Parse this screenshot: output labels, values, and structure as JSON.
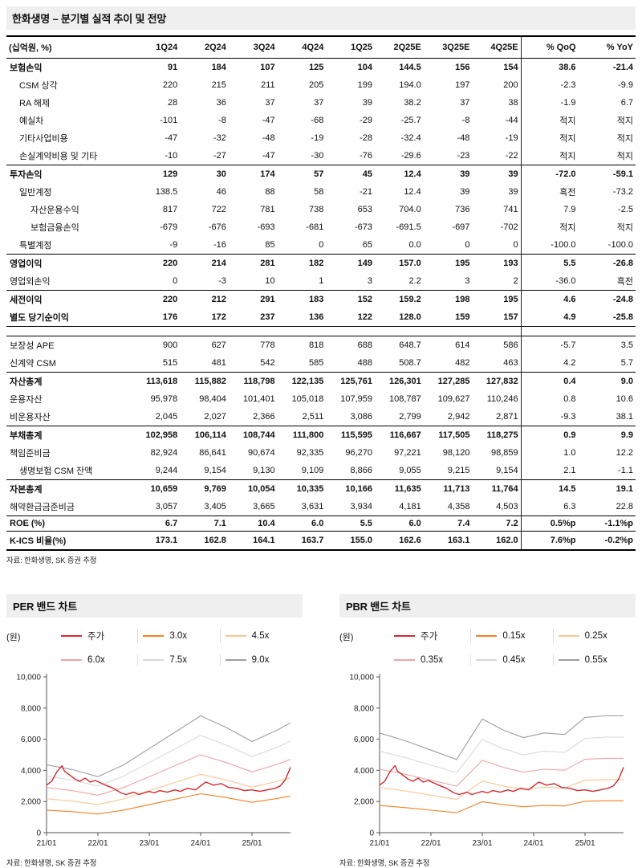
{
  "colors": {
    "price_red": "#d7282f",
    "band_orange": "#f57f20",
    "band_light_orange": "#fbc690",
    "band_pink": "#f0a3a8",
    "band_light_gray": "#d9d9d9",
    "band_gray": "#9e9e9e",
    "header_bg": "#efefef"
  },
  "report": {
    "title": "한화생명 – 분기별 실적 추이 및 전망",
    "table": {
      "unit_header": "(십억원, %)",
      "columns": [
        "1Q24",
        "2Q24",
        "3Q24",
        "4Q24",
        "1Q25",
        "2Q25E",
        "3Q25E",
        "4Q25E",
        "% QoQ",
        "% YoY"
      ],
      "rows": [
        {
          "label": "보험손익",
          "bold": true,
          "values": [
            "91",
            "184",
            "107",
            "125",
            "104",
            "144.5",
            "156",
            "154",
            "38.6",
            "-21.4"
          ]
        },
        {
          "label": "CSM 상각",
          "indent": 1,
          "values": [
            "220",
            "215",
            "211",
            "205",
            "199",
            "194.0",
            "197",
            "200",
            "-2.3",
            "-9.9"
          ]
        },
        {
          "label": "RA 해제",
          "indent": 1,
          "values": [
            "28",
            "36",
            "37",
            "37",
            "39",
            "38.2",
            "37",
            "38",
            "-1.9",
            "6.7"
          ]
        },
        {
          "label": "예실차",
          "indent": 1,
          "values": [
            "-101",
            "-8",
            "-47",
            "-68",
            "-29",
            "-25.7",
            "-8",
            "-44",
            "적지",
            "적지"
          ]
        },
        {
          "label": "기타사업비용",
          "indent": 1,
          "values": [
            "-47",
            "-32",
            "-48",
            "-19",
            "-28",
            "-32.4",
            "-48",
            "-19",
            "적지",
            "적지"
          ]
        },
        {
          "label": "손실계약비용 및 기타",
          "indent": 1,
          "values": [
            "-10",
            "-27",
            "-47",
            "-30",
            "-76",
            "-29.6",
            "-23",
            "-22",
            "적지",
            "적지"
          ]
        },
        {
          "label": "투자손익",
          "bold": true,
          "rule": true,
          "values": [
            "129",
            "30",
            "174",
            "57",
            "45",
            "12.4",
            "39",
            "39",
            "-72.0",
            "-59.1"
          ]
        },
        {
          "label": "일반계정",
          "indent": 1,
          "values": [
            "138.5",
            "46",
            "88",
            "58",
            "-21",
            "12.4",
            "39",
            "39",
            "흑전",
            "-73.2"
          ]
        },
        {
          "label": "자산운용수익",
          "indent": 2,
          "values": [
            "817",
            "722",
            "781",
            "738",
            "653",
            "704.0",
            "736",
            "741",
            "7.9",
            "-2.5"
          ]
        },
        {
          "label": "보험금융손익",
          "indent": 2,
          "values": [
            "-679",
            "-676",
            "-693",
            "-681",
            "-673",
            "-691.5",
            "-697",
            "-702",
            "적지",
            "적지"
          ]
        },
        {
          "label": "특별계정",
          "indent": 1,
          "values": [
            "-9",
            "-16",
            "85",
            "0",
            "65",
            "0.0",
            "0",
            "0",
            "-100.0",
            "-100.0"
          ]
        },
        {
          "label": "영업이익",
          "bold": true,
          "rule": true,
          "values": [
            "220",
            "214",
            "281",
            "182",
            "149",
            "157.0",
            "195",
            "193",
            "5.5",
            "-26.8"
          ]
        },
        {
          "label": "영업외손익",
          "values": [
            "0",
            "-3",
            "10",
            "1",
            "3",
            "2.2",
            "3",
            "2",
            "-36.0",
            "흑전"
          ]
        },
        {
          "label": "세전이익",
          "bold": true,
          "rule": true,
          "values": [
            "220",
            "212",
            "291",
            "183",
            "152",
            "159.2",
            "198",
            "195",
            "4.6",
            "-24.8"
          ]
        },
        {
          "label": "별도 당기순이익",
          "bold": true,
          "values": [
            "176",
            "172",
            "237",
            "136",
            "122",
            "128.0",
            "159",
            "157",
            "4.9",
            "-25.8"
          ]
        },
        {
          "section_break": true
        },
        {
          "label": "보장성 APE",
          "rule": true,
          "values": [
            "900",
            "627",
            "778",
            "818",
            "688",
            "648.7",
            "614",
            "586",
            "-5.7",
            "3.5"
          ]
        },
        {
          "label": "신계약 CSM",
          "values": [
            "515",
            "481",
            "542",
            "585",
            "488",
            "508.7",
            "482",
            "463",
            "4.2",
            "5.7"
          ]
        },
        {
          "label": "자산총계",
          "bold": true,
          "rule": true,
          "values": [
            "113,618",
            "115,882",
            "118,798",
            "122,135",
            "125,761",
            "126,301",
            "127,285",
            "127,832",
            "0.4",
            "9.0"
          ]
        },
        {
          "label": "운용자산",
          "values": [
            "95,978",
            "98,404",
            "101,401",
            "105,018",
            "107,959",
            "108,787",
            "109,627",
            "110,246",
            "0.8",
            "10.6"
          ]
        },
        {
          "label": "비운용자산",
          "values": [
            "2,045",
            "2,027",
            "2,366",
            "2,511",
            "3,086",
            "2,799",
            "2,942",
            "2,871",
            "-9.3",
            "38.1"
          ]
        },
        {
          "label": "부채총계",
          "bold": true,
          "rule": true,
          "values": [
            "102,958",
            "106,114",
            "108,744",
            "111,800",
            "115,595",
            "116,667",
            "117,505",
            "118,275",
            "0.9",
            "9.9"
          ]
        },
        {
          "label": "책임준비금",
          "values": [
            "82,924",
            "86,641",
            "90,674",
            "92,335",
            "96,270",
            "97,221",
            "98,120",
            "98,859",
            "1.0",
            "12.2"
          ]
        },
        {
          "label": "생명보험 CSM 잔액",
          "indent": 1,
          "values": [
            "9,244",
            "9,154",
            "9,130",
            "9,109",
            "8,866",
            "9,055",
            "9,215",
            "9,154",
            "2.1",
            "-1.1"
          ]
        },
        {
          "label": "자본총계",
          "bold": true,
          "rule": true,
          "values": [
            "10,659",
            "9,769",
            "10,054",
            "10,335",
            "10,166",
            "11,635",
            "11,713",
            "11,764",
            "14.5",
            "19.1"
          ]
        },
        {
          "label": "해약환급금준비금",
          "values": [
            "3,057",
            "3,405",
            "3,665",
            "3,631",
            "3,934",
            "4,181",
            "4,358",
            "4,503",
            "6.3",
            "22.8"
          ]
        },
        {
          "label": "ROE (%)",
          "bold": true,
          "rule": true,
          "values": [
            "6.7",
            "7.1",
            "10.4",
            "6.0",
            "5.5",
            "6.0",
            "7.4",
            "7.2",
            "0.5%p",
            "-1.1%p"
          ]
        },
        {
          "label": "K-ICS 비율(%)",
          "bold": true,
          "rule": true,
          "values": [
            "173.1",
            "162.8",
            "164.1",
            "163.7",
            "155.0",
            "162.6",
            "163.1",
            "162.0",
            "7.6%p",
            "-0.2%p"
          ]
        }
      ],
      "source": "자료: 한화생명, SK 증권 추정"
    }
  },
  "chart_data": [
    {
      "type": "line",
      "title": "PER 밴드 차트",
      "ylabel": "(원)",
      "ylim": [
        0,
        10000
      ],
      "yticks": [
        0,
        2000,
        4000,
        6000,
        8000,
        10000
      ],
      "ytick_labels": [
        "0",
        "2,000",
        "4,000",
        "6,000",
        "8,000",
        "10,000"
      ],
      "xlim": [
        0,
        4.75
      ],
      "xtick_pos": [
        0,
        1,
        2,
        3,
        4
      ],
      "xtick_labels": [
        "21/01",
        "22/01",
        "23/01",
        "24/01",
        "25/01"
      ],
      "grid": false,
      "legend_position": "top",
      "source": "자료: 한화생명, SK 증권 추정",
      "series": [
        {
          "name": "주가",
          "color": "#d7282f",
          "width": 1.4,
          "x": [
            0,
            0.1,
            0.2,
            0.3,
            0.35,
            0.45,
            0.55,
            0.65,
            0.75,
            0.85,
            0.95,
            1.05,
            1.15,
            1.3,
            1.45,
            1.55,
            1.7,
            1.8,
            1.9,
            2.0,
            2.1,
            2.2,
            2.35,
            2.5,
            2.6,
            2.75,
            2.9,
            3.0,
            3.1,
            3.25,
            3.4,
            3.55,
            3.7,
            3.85,
            4.0,
            4.15,
            4.3,
            4.45,
            4.55,
            4.65,
            4.7,
            4.75
          ],
          "values": [
            3050,
            3300,
            3900,
            4300,
            3950,
            3700,
            3450,
            3300,
            3500,
            3250,
            3350,
            3200,
            3050,
            2850,
            2550,
            2450,
            2600,
            2450,
            2550,
            2650,
            2550,
            2700,
            2600,
            2750,
            2650,
            2850,
            2750,
            3000,
            3250,
            3050,
            3150,
            2900,
            2850,
            2700,
            2750,
            2650,
            2750,
            2850,
            3000,
            3400,
            3800,
            4200
          ]
        },
        {
          "name": "3.0x",
          "color": "#f57f20",
          "width": 1.1,
          "x": [
            0,
            0.5,
            1,
            1.5,
            2,
            2.5,
            3,
            3.5,
            4,
            4.5,
            4.75
          ],
          "values": [
            1450,
            1350,
            1200,
            1450,
            1800,
            2150,
            2500,
            2250,
            1950,
            2200,
            2350
          ]
        },
        {
          "name": "4.5x",
          "color": "#fbc690",
          "width": 1.1,
          "x": [
            0,
            0.5,
            1,
            1.5,
            2,
            2.5,
            3,
            3.5,
            4,
            4.5,
            4.75
          ],
          "values": [
            2175,
            2025,
            1800,
            2175,
            2700,
            3225,
            3750,
            3375,
            2925,
            3300,
            3525
          ]
        },
        {
          "name": "6.0x",
          "color": "#f0a3a8",
          "width": 1.1,
          "x": [
            0,
            0.5,
            1,
            1.5,
            2,
            2.5,
            3,
            3.5,
            4,
            4.5,
            4.75
          ],
          "values": [
            2900,
            2700,
            2400,
            2900,
            3600,
            4300,
            5000,
            4500,
            3900,
            4400,
            4700
          ]
        },
        {
          "name": "7.5x",
          "color": "#d9d9d9",
          "width": 1.1,
          "x": [
            0,
            0.5,
            1,
            1.5,
            2,
            2.5,
            3,
            3.5,
            4,
            4.5,
            4.75
          ],
          "values": [
            3625,
            3375,
            3000,
            3625,
            4500,
            5375,
            6250,
            5625,
            4875,
            5500,
            5875
          ]
        },
        {
          "name": "9.0x",
          "color": "#9e9e9e",
          "width": 1.1,
          "x": [
            0,
            0.5,
            1,
            1.5,
            2,
            2.5,
            3,
            3.5,
            4,
            4.5,
            4.75
          ],
          "values": [
            4350,
            4050,
            3600,
            4350,
            5400,
            6450,
            7500,
            6750,
            5850,
            6600,
            7050
          ]
        }
      ]
    },
    {
      "type": "line",
      "title": "PBR 밴드 차트",
      "ylabel": "(원)",
      "ylim": [
        0,
        10000
      ],
      "yticks": [
        0,
        2000,
        4000,
        6000,
        8000,
        10000
      ],
      "ytick_labels": [
        "0",
        "2,000",
        "4,000",
        "6,000",
        "8,000",
        "10,000"
      ],
      "xlim": [
        0,
        4.75
      ],
      "xtick_pos": [
        0,
        1,
        2,
        3,
        4
      ],
      "xtick_labels": [
        "21/01",
        "22/01",
        "23/01",
        "24/01",
        "25/01"
      ],
      "grid": false,
      "legend_position": "top",
      "source": "자료: 한화생명, SK 증권 추정",
      "series": [
        {
          "name": "주가",
          "color": "#d7282f",
          "width": 1.4,
          "x": [
            0,
            0.1,
            0.2,
            0.3,
            0.35,
            0.45,
            0.55,
            0.65,
            0.75,
            0.85,
            0.95,
            1.05,
            1.15,
            1.3,
            1.45,
            1.55,
            1.7,
            1.8,
            1.9,
            2.0,
            2.1,
            2.2,
            2.35,
            2.5,
            2.6,
            2.75,
            2.9,
            3.0,
            3.1,
            3.25,
            3.4,
            3.55,
            3.7,
            3.85,
            4.0,
            4.15,
            4.3,
            4.45,
            4.55,
            4.65,
            4.7,
            4.75
          ],
          "values": [
            3050,
            3300,
            3900,
            4300,
            3950,
            3700,
            3450,
            3300,
            3500,
            3250,
            3350,
            3200,
            3050,
            2850,
            2550,
            2450,
            2600,
            2450,
            2550,
            2650,
            2550,
            2700,
            2600,
            2750,
            2650,
            2850,
            2750,
            3000,
            3250,
            3050,
            3150,
            2900,
            2850,
            2700,
            2750,
            2650,
            2750,
            2850,
            3000,
            3400,
            3800,
            4200
          ]
        },
        {
          "name": "0.15x",
          "color": "#f57f20",
          "width": 1.1,
          "x": [
            0,
            0.5,
            1,
            1.5,
            2,
            2.4,
            2.8,
            3.2,
            3.6,
            4,
            4.4,
            4.75
          ],
          "values": [
            1745,
            1609,
            1445,
            1282,
            1991,
            1800,
            1664,
            1745,
            1718,
            2018,
            2045,
            2045
          ]
        },
        {
          "name": "0.25x",
          "color": "#fbc690",
          "width": 1.1,
          "x": [
            0,
            0.5,
            1,
            1.5,
            2,
            2.4,
            2.8,
            3.2,
            3.6,
            4,
            4.4,
            4.75
          ],
          "values": [
            2909,
            2682,
            2409,
            2136,
            3318,
            3000,
            2773,
            2909,
            2864,
            3364,
            3409,
            3409
          ]
        },
        {
          "name": "0.35x",
          "color": "#f0a3a8",
          "width": 1.1,
          "x": [
            0,
            0.5,
            1,
            1.5,
            2,
            2.4,
            2.8,
            3.2,
            3.6,
            4,
            4.4,
            4.75
          ],
          "values": [
            4073,
            3755,
            3373,
            2991,
            4645,
            4200,
            3882,
            4073,
            4009,
            4709,
            4773,
            4773
          ]
        },
        {
          "name": "0.45x",
          "color": "#d9d9d9",
          "width": 1.1,
          "x": [
            0,
            0.5,
            1,
            1.5,
            2,
            2.4,
            2.8,
            3.2,
            3.6,
            4,
            4.4,
            4.75
          ],
          "values": [
            5236,
            4827,
            4336,
            3845,
            5973,
            5400,
            4991,
            5236,
            5155,
            6055,
            6136,
            6136
          ]
        },
        {
          "name": "0.55x",
          "color": "#9e9e9e",
          "width": 1.1,
          "x": [
            0,
            0.5,
            1,
            1.5,
            2,
            2.4,
            2.8,
            3.2,
            3.6,
            4,
            4.4,
            4.75
          ],
          "values": [
            6400,
            5900,
            5300,
            4700,
            7300,
            6600,
            6100,
            6400,
            6300,
            7400,
            7500,
            7500
          ]
        }
      ]
    }
  ]
}
